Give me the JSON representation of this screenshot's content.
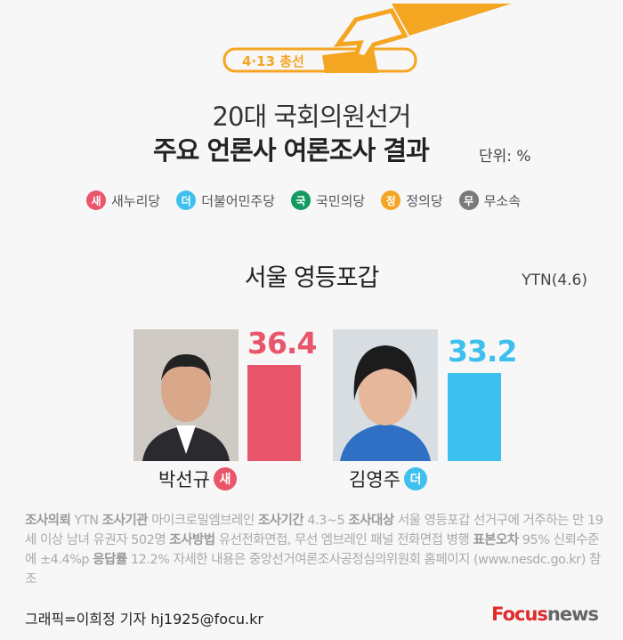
{
  "header": {
    "tag": "4·13 총선",
    "title_line1": "20대 국회의원선거",
    "title_line2": "주요 언론사 여론조사 결과",
    "unit": "단위: %"
  },
  "legend": [
    {
      "badge": "새",
      "label": "새누리당",
      "color": "#e9566b"
    },
    {
      "badge": "더",
      "label": "더불어민주당",
      "color": "#3ec0ee"
    },
    {
      "badge": "국",
      "label": "국민의당",
      "color": "#139a61"
    },
    {
      "badge": "정",
      "label": "정의당",
      "color": "#f4a623"
    },
    {
      "badge": "무",
      "label": "무소속",
      "color": "#7a7a7a"
    }
  ],
  "region": "서울 영등포갑",
  "source": "YTN(4.6)",
  "candidates": [
    {
      "name": "박선규",
      "party_badge": "새",
      "value": "36.4",
      "percent": 36.4,
      "color": "#e9566b"
    },
    {
      "name": "김영주",
      "party_badge": "더",
      "value": "33.2",
      "percent": 33.2,
      "color": "#3ec0ee"
    }
  ],
  "notes": {
    "k1": "조사의뢰",
    "v1": " YTN ",
    "k2": "조사기관",
    "v2": " 마이크로밀엠브레인 ",
    "k3": "조사기간",
    "v3": " 4.3~5  ",
    "k4": "조사대상",
    "v4": " 서울 영등포갑 선거구에 거주하는 만 19세 이상 남녀 유권자 502명 ",
    "k5": "조사방법",
    "v5": " 유선전화면접, 무선 엠브레인 패널 전화면접 병행  ",
    "k6": "표본오차",
    "v6": " 95% 신뢰수준에 ±4.4%p  ",
    "k7": "응답률",
    "v7": " 12.2% 자세한 내용은 중앙선거여론조사공정심의위원회 홈페이지 (www.nesdc.go.kr) 참조"
  },
  "credit": "그래픽=이희정 기자 hj1925@focu.kr",
  "logo": {
    "a": "Focus",
    "b": "news"
  }
}
